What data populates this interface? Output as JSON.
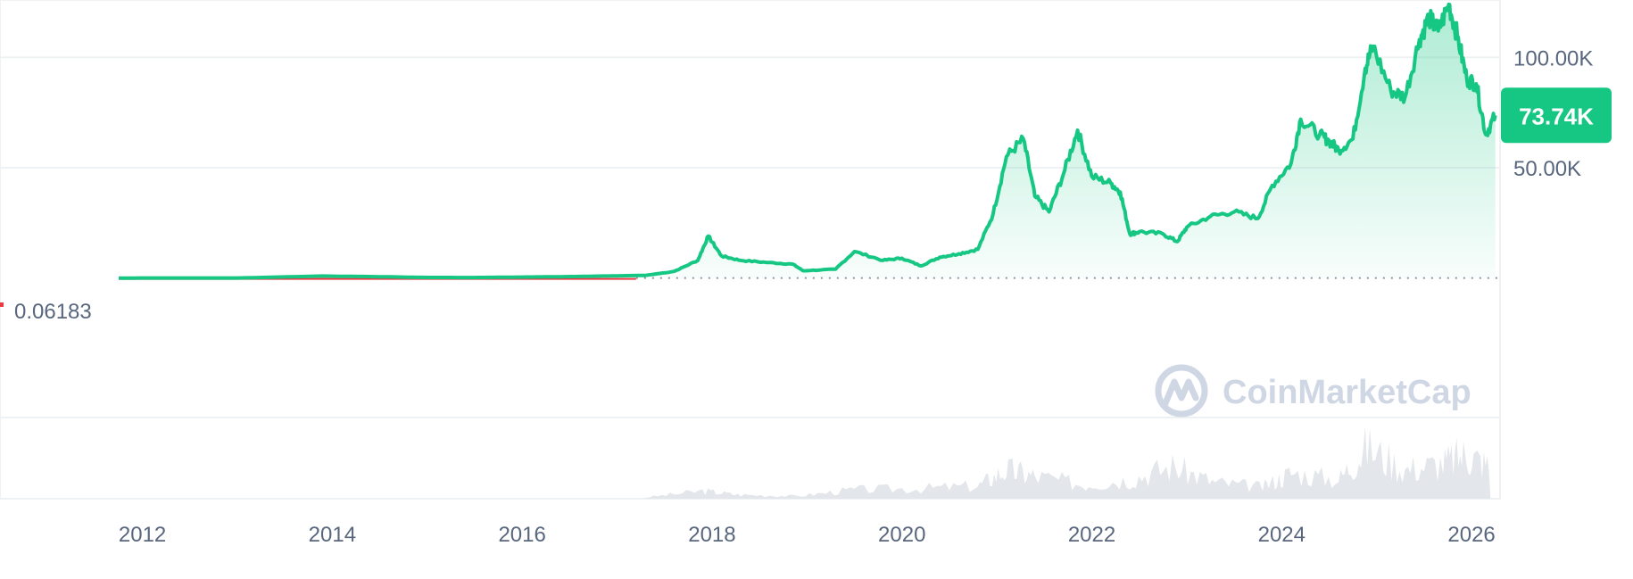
{
  "chart_data": {
    "type": "line",
    "title": "",
    "xlabel": "",
    "ylabel": "",
    "xlim": [
      2010.5,
      2026.3
    ],
    "ylim": [
      -100000,
      126000
    ],
    "x_ticks": [
      "2012",
      "2014",
      "2016",
      "2018",
      "2020",
      "2022",
      "2024",
      "2026"
    ],
    "y_ticks": [
      {
        "value": 100000,
        "label": "100.00K"
      },
      {
        "value": 50000,
        "label": "50.00K"
      }
    ],
    "start_price": {
      "value": 0.06183,
      "label": "0.06183"
    },
    "current_price": {
      "value": 73740,
      "label": "73.74K"
    },
    "grid": true,
    "series": [
      {
        "values": [
          [
            2011.75,
            0.07
          ],
          [
            2012.5,
            8
          ],
          [
            2013.0,
            13
          ],
          [
            2013.9,
            900
          ],
          [
            2014.5,
            600
          ],
          [
            2015.0,
            250
          ],
          [
            2015.5,
            240
          ],
          [
            2016.0,
            430
          ],
          [
            2016.5,
            650
          ],
          [
            2017.0,
            1000
          ],
          [
            2017.3,
            1200
          ],
          [
            2017.6,
            3000
          ],
          [
            2017.85,
            8000
          ],
          [
            2017.96,
            19000
          ],
          [
            2018.1,
            10000
          ],
          [
            2018.3,
            8000
          ],
          [
            2018.6,
            7000
          ],
          [
            2018.85,
            6300
          ],
          [
            2018.96,
            3300
          ],
          [
            2019.3,
            4000
          ],
          [
            2019.5,
            12000
          ],
          [
            2019.8,
            8000
          ],
          [
            2020.0,
            9000
          ],
          [
            2020.2,
            5500
          ],
          [
            2020.4,
            9500
          ],
          [
            2020.6,
            11000
          ],
          [
            2020.8,
            13000
          ],
          [
            2020.96,
            29000
          ],
          [
            2021.1,
            55000
          ],
          [
            2021.28,
            63000
          ],
          [
            2021.4,
            37000
          ],
          [
            2021.55,
            30000
          ],
          [
            2021.7,
            47000
          ],
          [
            2021.85,
            67000
          ],
          [
            2022.0,
            46000
          ],
          [
            2022.2,
            43000
          ],
          [
            2022.3,
            39000
          ],
          [
            2022.4,
            20000
          ],
          [
            2022.5,
            21000
          ],
          [
            2022.75,
            20000
          ],
          [
            2022.9,
            16500
          ],
          [
            2023.0,
            23000
          ],
          [
            2023.25,
            28000
          ],
          [
            2023.5,
            30000
          ],
          [
            2023.75,
            27000
          ],
          [
            2023.9,
            42000
          ],
          [
            2024.1,
            52000
          ],
          [
            2024.2,
            72000
          ],
          [
            2024.4,
            65000
          ],
          [
            2024.5,
            62000
          ],
          [
            2024.6,
            58000
          ],
          [
            2024.75,
            63000
          ],
          [
            2024.88,
            95000
          ],
          [
            2024.96,
            105000
          ],
          [
            2025.15,
            85000
          ],
          [
            2025.3,
            82000
          ],
          [
            2025.45,
            108000
          ],
          [
            2025.55,
            118000
          ],
          [
            2025.65,
            112000
          ],
          [
            2025.76,
            124000
          ],
          [
            2025.85,
            110000
          ],
          [
            2025.95,
            90000
          ],
          [
            2026.05,
            88000
          ],
          [
            2026.15,
            65000
          ],
          [
            2026.25,
            73740
          ]
        ]
      }
    ],
    "volume": [
      [
        2017.3,
        0.02
      ],
      [
        2017.9,
        0.12
      ],
      [
        2018.3,
        0.06
      ],
      [
        2018.9,
        0.04
      ],
      [
        2019.5,
        0.14
      ],
      [
        2020.2,
        0.16
      ],
      [
        2020.8,
        0.2
      ],
      [
        2021.1,
        0.45
      ],
      [
        2021.4,
        0.35
      ],
      [
        2021.9,
        0.22
      ],
      [
        2022.4,
        0.3
      ],
      [
        2022.85,
        0.5
      ],
      [
        2023.3,
        0.25
      ],
      [
        2023.8,
        0.18
      ],
      [
        2024.1,
        0.4
      ],
      [
        2024.6,
        0.3
      ],
      [
        2024.9,
        0.8
      ],
      [
        2025.3,
        0.45
      ],
      [
        2025.7,
        0.55
      ],
      [
        2025.95,
        0.7
      ],
      [
        2026.2,
        0.5
      ]
    ],
    "watermark": "CoinMarketCap",
    "colors": {
      "line": "#16c784",
      "area_top": "#16c784",
      "start_line": "#ea3943",
      "grid": "#eff2f5",
      "tick_text": "#58667e",
      "badge_bg": "#16c784",
      "badge_text": "#ffffff",
      "volume": "#e3e6ea",
      "watermark": "#cfd6e4"
    }
  }
}
